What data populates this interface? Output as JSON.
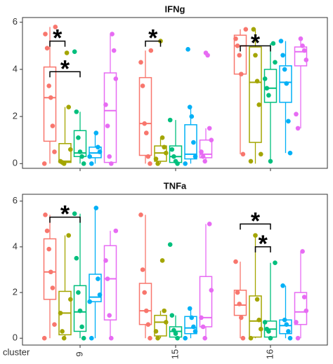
{
  "chart_data": [
    {
      "type": "box",
      "title": "IFNg",
      "ylim": [
        -0.2,
        6.2
      ],
      "yticks": [
        0,
        2,
        4,
        6
      ],
      "grid": false,
      "series": [
        {
          "color": "#F8766D",
          "boxes": [
            {
              "whislo": 0,
              "q1": 0.95,
              "med": 2.8,
              "q3": 4.1,
              "whishi": 5.8,
              "points": [
                0,
                0.5,
                1.6,
                2.8,
                3.3,
                4.9,
                5.5,
                5.8
              ]
            },
            {
              "whislo": 0,
              "q1": 0.35,
              "med": 1.7,
              "q3": 3.65,
              "whishi": 4.8,
              "points": [
                0,
                0.3,
                1.3,
                1.7,
                3.3,
                4.3,
                4.8
              ]
            },
            {
              "whislo": 0.4,
              "q1": 3.8,
              "med": 5.0,
              "q3": 5.45,
              "whishi": 5.7,
              "points": [
                0.4,
                3.8,
                4.6,
                5.0,
                5.3,
                5.7
              ]
            }
          ]
        },
        {
          "color": "#A3A500",
          "boxes": [
            {
              "whislo": 0,
              "q1": 0.05,
              "med": 0.1,
              "q3": 0.85,
              "whishi": 2.4,
              "points": [
                0,
                0.05,
                0.1,
                0.6,
                2.4,
                4.7
              ]
            },
            {
              "whislo": 0,
              "q1": 0.1,
              "med": 0.45,
              "q3": 0.75,
              "whishi": 1.1,
              "points": [
                0,
                0.2,
                0.45,
                0.7,
                1.1,
                5.2
              ]
            },
            {
              "whislo": 0,
              "q1": 0.9,
              "med": 3.45,
              "q3": 4.95,
              "whishi": 5.7,
              "points": [
                0.1,
                0.4,
                2.5,
                3.5,
                4.6,
                5.7
              ]
            }
          ]
        },
        {
          "color": "#00BF7D",
          "boxes": [
            {
              "whislo": 0,
              "q1": 0.3,
              "med": 0.45,
              "q3": 1.4,
              "whishi": 2.2,
              "points": [
                0,
                0.3,
                0.5,
                1.1,
                2.2,
                4.75
              ]
            },
            {
              "whislo": 0,
              "q1": 0.05,
              "med": 0.3,
              "q3": 0.75,
              "whishi": 1.85,
              "points": [
                0,
                0.1,
                0.3,
                0.6,
                1.85
              ]
            },
            {
              "whislo": 0,
              "q1": 2.6,
              "med": 3.2,
              "q3": 4.0,
              "whishi": 5.1,
              "points": [
                0.1,
                2.9,
                3.2,
                3.6,
                4.3,
                5.1
              ]
            }
          ]
        },
        {
          "color": "#00B0F6",
          "boxes": [
            {
              "whislo": 0,
              "q1": 0.25,
              "med": 0.45,
              "q3": 0.7,
              "whishi": 1.3,
              "points": [
                0,
                0.3,
                0.5,
                0.7,
                1.3
              ]
            },
            {
              "whislo": 0,
              "q1": 0.2,
              "med": 0.4,
              "q3": 1.65,
              "whishi": 2.4,
              "points": [
                0,
                0.3,
                0.9,
                2.0,
                2.4,
                4.85
              ]
            },
            {
              "whislo": 0.45,
              "q1": 2.6,
              "med": 3.45,
              "q3": 4.15,
              "whishi": 5.2,
              "points": [
                0.45,
                1.8,
                3.4,
                4.0,
                4.6,
                5.2
              ]
            }
          ]
        },
        {
          "color": "#E76BF3",
          "boxes": [
            {
              "whislo": 0,
              "q1": 0.05,
              "med": 2.25,
              "q3": 3.85,
              "whishi": 5.5,
              "points": [
                0,
                0.3,
                1.6,
                2.5,
                3.6,
                4.8,
                5.5
              ]
            },
            {
              "whislo": 0.1,
              "q1": 0.25,
              "med": 0.4,
              "q3": 1.0,
              "whishi": 1.5,
              "points": [
                0.1,
                0.3,
                0.5,
                1.0,
                1.5,
                4.6,
                4.7
              ]
            },
            {
              "whislo": 1.5,
              "q1": 4.15,
              "med": 4.75,
              "q3": 4.95,
              "whishi": 5.3,
              "points": [
                1.5,
                2.1,
                4.4,
                4.8,
                5.0,
                5.3
              ]
            }
          ]
        }
      ],
      "annotations": [
        {
          "label": "*",
          "cluster": 0,
          "from": 0,
          "to": 1,
          "y": 5.2
        },
        {
          "label": "*",
          "cluster": 0,
          "from": 0,
          "to": 2,
          "y": 3.9
        },
        {
          "label": "*",
          "cluster": 1,
          "from": 0,
          "to": 1,
          "y": 5.2
        },
        {
          "label": "*",
          "cluster": 2,
          "from": 0,
          "to": 2,
          "y": 5.0
        }
      ]
    },
    {
      "type": "box",
      "title": "TNFa",
      "xlabel": "cluster",
      "categories": [
        "9",
        "15",
        "16"
      ],
      "ylim": [
        -0.3,
        6.3
      ],
      "yticks": [
        0,
        2,
        4,
        6
      ],
      "grid": false,
      "series": [
        {
          "color": "#F8766D",
          "boxes": [
            {
              "whislo": 0,
              "q1": 1.7,
              "med": 2.9,
              "q3": 4.35,
              "whishi": 5.4,
              "points": [
                0,
                0.6,
                2.2,
                2.9,
                3.9,
                4.7,
                5.4
              ]
            },
            {
              "whislo": 0,
              "q1": 0.6,
              "med": 1.2,
              "q3": 2.4,
              "whishi": 5.4,
              "points": [
                0,
                0.6,
                1.2,
                2.0,
                3.0,
                5.4
              ]
            },
            {
              "whislo": 0,
              "q1": 1.0,
              "med": 1.45,
              "q3": 2.1,
              "whishi": 3.35,
              "points": [
                0,
                0.9,
                1.5,
                2.0,
                3.35
              ]
            }
          ]
        },
        {
          "color": "#A3A500",
          "boxes": [
            {
              "whislo": 0,
              "q1": 0.15,
              "med": 1.1,
              "q3": 2.05,
              "whishi": 4.5,
              "points": [
                0,
                0.3,
                1.1,
                1.7,
                4.5
              ]
            },
            {
              "whislo": 0,
              "q1": 0.1,
              "med": 0.7,
              "q3": 1.0,
              "whishi": 1.2,
              "points": [
                0,
                0.3,
                0.7,
                1.2,
                3.4
              ]
            },
            {
              "whislo": 0,
              "q1": 0.05,
              "med": 0.75,
              "q3": 1.85,
              "whishi": 4.5,
              "points": [
                0,
                0.4,
                0.8,
                1.7,
                4.5
              ]
            }
          ]
        },
        {
          "color": "#00BF7D",
          "boxes": [
            {
              "whislo": 0,
              "q1": 0.3,
              "med": 1.15,
              "q3": 2.3,
              "whishi": 5.45,
              "points": [
                0,
                0.5,
                1.2,
                2.0,
                3.5,
                5.45
              ]
            },
            {
              "whislo": 0,
              "q1": 0.05,
              "med": 0.3,
              "q3": 0.5,
              "whishi": 1.0,
              "points": [
                0,
                0.2,
                0.35,
                1.0,
                4.1
              ]
            },
            {
              "whislo": 0,
              "q1": 0.05,
              "med": 0.4,
              "q3": 0.75,
              "whishi": 3.3,
              "points": [
                0,
                0.3,
                0.4,
                0.7,
                3.3
              ]
            }
          ]
        },
        {
          "color": "#00B0F6",
          "boxes": [
            {
              "whislo": 0,
              "q1": 1.6,
              "med": 1.8,
              "q3": 2.8,
              "whishi": 5.7,
              "points": [
                0,
                1.6,
                1.9,
                2.6,
                5.7
              ]
            },
            {
              "whislo": 0,
              "q1": 0.2,
              "med": 0.45,
              "q3": 0.95,
              "whishi": 1.3,
              "points": [
                0,
                0.3,
                0.5,
                0.9,
                1.3
              ]
            },
            {
              "whislo": 0,
              "q1": 0.2,
              "med": 0.55,
              "q3": 0.8,
              "whishi": 2.3,
              "points": [
                0,
                0.3,
                0.6,
                0.8,
                2.3
              ]
            }
          ]
        },
        {
          "color": "#E76BF3",
          "boxes": [
            {
              "whislo": 0,
              "q1": 0.8,
              "med": 2.6,
              "q3": 4.05,
              "whishi": 4.7,
              "points": [
                0,
                1.0,
                2.6,
                3.4,
                4.7
              ]
            },
            {
              "whislo": 0,
              "q1": 0.5,
              "med": 0.9,
              "q3": 2.7,
              "whishi": 5.0,
              "points": [
                0,
                0.5,
                0.9,
                2.1,
                5.0
              ]
            },
            {
              "whislo": 0,
              "q1": 0.6,
              "med": 1.15,
              "q3": 2.0,
              "whishi": 3.8,
              "points": [
                0,
                0.7,
                1.2,
                1.8,
                3.8
              ]
            }
          ]
        }
      ],
      "annotations": [
        {
          "label": "*",
          "cluster": 0,
          "from": 0,
          "to": 2,
          "y": 5.3
        },
        {
          "label": "*",
          "cluster": 2,
          "from": 0,
          "to": 2,
          "y": 5.0
        },
        {
          "label": "*",
          "cluster": 2,
          "from": 1,
          "to": 2,
          "y": 4.0
        }
      ]
    }
  ]
}
